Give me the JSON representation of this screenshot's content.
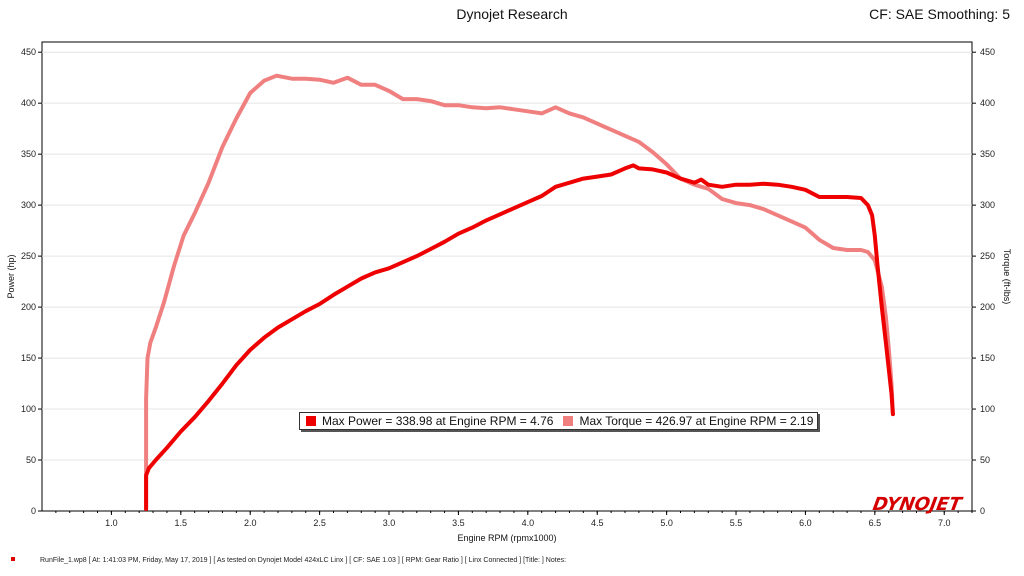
{
  "header": {
    "title": "Dynojet Research",
    "right": "CF: SAE Smoothing: 5"
  },
  "footer": {
    "text": "RunFile_1.wp8  [ At:  1:41:03 PM, Friday, May 17, 2019 ]  [ As tested on Dynojet Model 424xLC Linx ]  [ CF:  SAE 1.03 ]  [ RPM:  Gear Ratio ]  [ Linx Connected ]  [Title: ]   Notes:"
  },
  "logo": {
    "text": "DYNOJET"
  },
  "colors": {
    "power": "#ee0000",
    "torque": "#f08080"
  },
  "chart_data": {
    "type": "line",
    "xlabel": "Engine RPM (rpmx1000)",
    "ylabel": "Power (hp)",
    "ylabel_right": "Torque (ft-lbs)",
    "xlim": [
      0.5,
      7.2
    ],
    "ylim": [
      0,
      460
    ],
    "ylim_right": [
      0,
      460
    ],
    "x_ticks": [
      "1.0",
      "1.5",
      "2.0",
      "2.5",
      "3.0",
      "3.5",
      "4.0",
      "4.5",
      "5.0",
      "5.5",
      "6.0",
      "6.5",
      "7.0"
    ],
    "y_ticks": [
      "0",
      "50",
      "100",
      "150",
      "200",
      "250",
      "300",
      "350",
      "400",
      "450"
    ],
    "legend": [
      "Max Power = 338.98 at Engine RPM = 4.76",
      "Max Torque = 426.97 at Engine RPM = 2.19"
    ],
    "series": [
      {
        "name": "Power",
        "x": [
          1.25,
          1.25,
          1.27,
          1.32,
          1.4,
          1.5,
          1.6,
          1.7,
          1.8,
          1.9,
          2.0,
          2.1,
          2.2,
          2.3,
          2.4,
          2.5,
          2.6,
          2.7,
          2.8,
          2.9,
          3.0,
          3.1,
          3.2,
          3.3,
          3.4,
          3.5,
          3.6,
          3.7,
          3.8,
          3.9,
          4.0,
          4.1,
          4.2,
          4.3,
          4.4,
          4.5,
          4.6,
          4.7,
          4.76,
          4.8,
          4.9,
          5.0,
          5.1,
          5.2,
          5.25,
          5.3,
          5.4,
          5.5,
          5.6,
          5.7,
          5.8,
          5.9,
          6.0,
          6.1,
          6.2,
          6.3,
          6.4,
          6.45,
          6.48,
          6.5,
          6.52,
          6.55,
          6.58,
          6.6,
          6.62,
          6.63
        ],
        "y": [
          2,
          35,
          42,
          50,
          62,
          78,
          92,
          108,
          125,
          143,
          158,
          170,
          180,
          188,
          196,
          203,
          212,
          220,
          228,
          234,
          238,
          244,
          250,
          257,
          264,
          272,
          278,
          285,
          291,
          297,
          303,
          309,
          318,
          322,
          326,
          328,
          330,
          336,
          338.98,
          336,
          335,
          332,
          326,
          322,
          325,
          320,
          318,
          320,
          320,
          321,
          320,
          318,
          315,
          308,
          308,
          308,
          307,
          300,
          290,
          270,
          240,
          200,
          165,
          140,
          115,
          95
        ]
      },
      {
        "name": "Torque",
        "x": [
          1.25,
          1.25,
          1.26,
          1.28,
          1.32,
          1.38,
          1.45,
          1.52,
          1.6,
          1.7,
          1.8,
          1.9,
          2.0,
          2.1,
          2.19,
          2.3,
          2.4,
          2.5,
          2.6,
          2.7,
          2.8,
          2.9,
          3.0,
          3.1,
          3.2,
          3.3,
          3.4,
          3.5,
          3.6,
          3.7,
          3.8,
          3.9,
          4.0,
          4.1,
          4.2,
          4.3,
          4.4,
          4.5,
          4.6,
          4.7,
          4.8,
          4.9,
          5.0,
          5.1,
          5.2,
          5.3,
          5.4,
          5.5,
          5.6,
          5.7,
          5.8,
          5.9,
          6.0,
          6.1,
          6.2,
          6.3,
          6.4,
          6.45,
          6.5,
          6.55,
          6.58,
          6.6,
          6.62,
          6.63
        ],
        "y": [
          2,
          110,
          150,
          165,
          180,
          205,
          240,
          270,
          292,
          322,
          357,
          385,
          410,
          422,
          426.97,
          424,
          424,
          423,
          420,
          425,
          418,
          418,
          412,
          404,
          404,
          402,
          398,
          398,
          396,
          395,
          396,
          394,
          392,
          390,
          396,
          390,
          386,
          380,
          374,
          368,
          362,
          352,
          340,
          326,
          320,
          316,
          306,
          302,
          300,
          296,
          290,
          284,
          278,
          266,
          258,
          256,
          256,
          254,
          246,
          220,
          190,
          160,
          125,
          95
        ]
      }
    ]
  }
}
